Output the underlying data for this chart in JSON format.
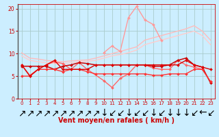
{
  "background_color": "#cceeff",
  "grid_color": "#aacccc",
  "xlim": [
    -0.5,
    23.5
  ],
  "ylim": [
    0,
    21
  ],
  "yticks": [
    0,
    5,
    10,
    15,
    20
  ],
  "xticks": [
    0,
    1,
    2,
    3,
    4,
    5,
    6,
    7,
    8,
    9,
    10,
    11,
    12,
    13,
    14,
    15,
    16,
    17,
    18,
    19,
    20,
    21,
    22,
    23
  ],
  "lines": [
    {
      "x": [
        0,
        1,
        2,
        3,
        4,
        5,
        6,
        7,
        8,
        9,
        10,
        11,
        12,
        13,
        14,
        15,
        16,
        17,
        18,
        19,
        20,
        21,
        22,
        23
      ],
      "y": [
        10.2,
        9.0,
        8.8,
        8.5,
        8.3,
        8.2,
        8.4,
        8.5,
        8.6,
        9.0,
        9.5,
        10.0,
        10.5,
        11.0,
        11.5,
        13.0,
        13.5,
        14.0,
        14.5,
        15.0,
        15.5,
        16.2,
        15.0,
        13.0
      ],
      "color": "#ffbbbb",
      "lw": 1.0,
      "marker": null
    },
    {
      "x": [
        0,
        1,
        2,
        3,
        4,
        5,
        6,
        7,
        8,
        9,
        10,
        11,
        12,
        13,
        14,
        15,
        16,
        17,
        18,
        19,
        20,
        21,
        22,
        23
      ],
      "y": [
        9.5,
        8.5,
        8.2,
        8.0,
        7.8,
        7.8,
        8.0,
        8.2,
        8.3,
        8.5,
        9.0,
        9.5,
        9.8,
        10.2,
        10.8,
        12.0,
        12.5,
        13.0,
        13.5,
        14.0,
        14.5,
        15.0,
        14.0,
        12.0
      ],
      "color": "#ffcccc",
      "lw": 1.0,
      "marker": null
    },
    {
      "x": [
        10,
        11,
        12,
        13,
        14,
        15,
        16,
        17
      ],
      "y": [
        10.2,
        11.7,
        10.5,
        18.0,
        20.5,
        17.5,
        16.5,
        13.0
      ],
      "color": "#ff9999",
      "lw": 1.0,
      "marker": "D",
      "markersize": 2
    },
    {
      "x": [
        0,
        1,
        2,
        3,
        4,
        5,
        6,
        7,
        8,
        10,
        11,
        12,
        13,
        14,
        15,
        16,
        17,
        18,
        19,
        20,
        21,
        22,
        23
      ],
      "y": [
        7.5,
        5.2,
        6.5,
        7.5,
        8.2,
        7.8,
        6.5,
        8.0,
        6.5,
        4.0,
        2.5,
        4.5,
        5.5,
        7.5,
        7.5,
        6.8,
        6.5,
        6.5,
        8.5,
        7.5,
        7.0,
        6.5,
        3.8
      ],
      "color": "#ff6666",
      "lw": 1.0,
      "marker": "D",
      "markersize": 2
    },
    {
      "x": [
        0,
        1,
        2,
        3,
        4,
        5,
        6,
        7,
        8,
        9,
        10,
        11,
        12,
        13,
        14,
        15,
        16,
        17,
        18,
        19,
        20,
        21,
        22,
        23
      ],
      "y": [
        7.2,
        7.2,
        7.2,
        7.2,
        6.5,
        7.2,
        7.5,
        8.0,
        7.8,
        7.5,
        7.5,
        7.5,
        7.5,
        7.5,
        7.5,
        7.5,
        7.2,
        7.2,
        7.5,
        8.5,
        9.0,
        7.5,
        7.0,
        3.5
      ],
      "color": "#cc0000",
      "lw": 1.1,
      "marker": "D",
      "markersize": 2
    },
    {
      "x": [
        0,
        1,
        2,
        3,
        4,
        5,
        6,
        7,
        8,
        9,
        10,
        11,
        12,
        13,
        14,
        15,
        16,
        17,
        18,
        19,
        20,
        21,
        22,
        23
      ],
      "y": [
        5.0,
        5.0,
        6.5,
        6.5,
        6.5,
        6.0,
        6.5,
        6.5,
        6.0,
        5.5,
        5.5,
        5.5,
        5.5,
        5.5,
        5.5,
        5.5,
        5.2,
        5.2,
        5.5,
        5.5,
        5.5,
        6.5,
        6.5,
        3.8
      ],
      "color": "#ff3333",
      "lw": 1.0,
      "marker": "D",
      "markersize": 2
    },
    {
      "x": [
        0,
        1,
        2,
        3,
        4,
        5,
        6,
        7,
        8,
        9,
        10,
        11,
        12,
        13,
        14,
        15,
        16,
        17,
        18,
        19,
        20,
        21,
        22,
        23
      ],
      "y": [
        7.5,
        5.0,
        6.5,
        7.5,
        8.5,
        6.5,
        6.5,
        6.5,
        6.5,
        7.5,
        7.5,
        7.5,
        7.5,
        7.5,
        7.5,
        7.5,
        7.5,
        7.5,
        7.5,
        7.5,
        8.5,
        7.5,
        7.0,
        6.5
      ],
      "color": "#dd0000",
      "lw": 1.0,
      "marker": "D",
      "markersize": 2
    }
  ],
  "arrow_labels": [
    "↗",
    "↗",
    "↗",
    "↗",
    "↗",
    "↗",
    "↗",
    "↗",
    "↗",
    "↗",
    "↓",
    "↙",
    "↙",
    "↓",
    "↙",
    "↙",
    "↓",
    "↙",
    "↓",
    "↓",
    "↓",
    "↙",
    "←",
    "↙"
  ],
  "xlabel": "Vent moyen/en rafales ( km/h )",
  "xlabel_color": "#cc0000",
  "tick_color": "#cc0000",
  "tick_fontsize": 5,
  "xlabel_fontsize": 7,
  "ylabel_fontsize": 6
}
